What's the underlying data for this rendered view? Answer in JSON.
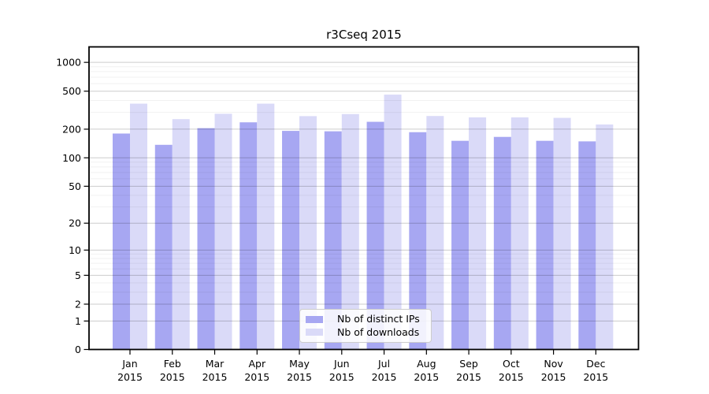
{
  "chart_data": {
    "type": "bar",
    "title": "r3Cseq 2015",
    "categories": [
      "Jan",
      "Feb",
      "Mar",
      "Apr",
      "May",
      "Jun",
      "Jul",
      "Aug",
      "Sep",
      "Oct",
      "Nov",
      "Dec"
    ],
    "x_tick_sublabel": "2015",
    "series": [
      {
        "name": "Nb of distinct IPs",
        "color": "#a7a7f2",
        "values": [
          180,
          137,
          205,
          236,
          192,
          190,
          239,
          186,
          151,
          166,
          151,
          149
        ]
      },
      {
        "name": "Nb of downloads",
        "color": "#dadaf8",
        "values": [
          370,
          255,
          290,
          370,
          274,
          288,
          460,
          275,
          266,
          266,
          263,
          224
        ]
      }
    ],
    "y_ticks": [
      0,
      1,
      2,
      5,
      10,
      20,
      50,
      100,
      200,
      500,
      1000
    ],
    "y_minor_gridlines": [
      3,
      4,
      6,
      7,
      8,
      9,
      30,
      40,
      60,
      70,
      80,
      90,
      300,
      400,
      600,
      700,
      800,
      900
    ],
    "y_scale": "log1p",
    "ylim": [
      0,
      1390
    ],
    "xlabel": "",
    "ylabel": "",
    "grid": "horizontal",
    "legend_position": "lower-center-inside"
  }
}
